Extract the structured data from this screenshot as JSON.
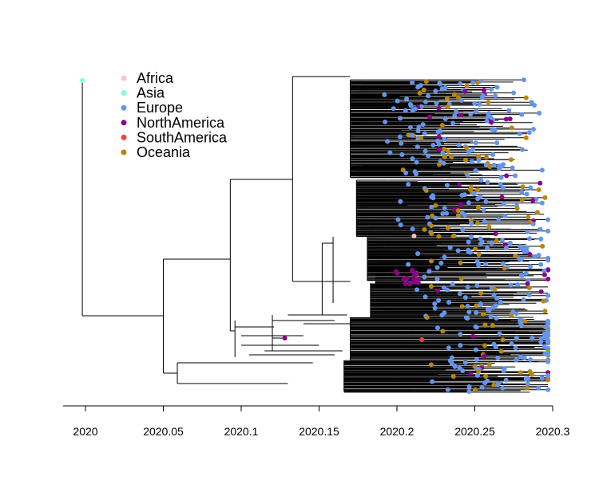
{
  "chart_data": {
    "type": "scatter",
    "description_kind": "time-scaled phylogenetic tree",
    "x_axis": {
      "range": [
        2019.98,
        2020.3
      ],
      "ticks": [
        2020,
        2020.05,
        2020.1,
        2020.15,
        2020.2,
        2020.25,
        2020.3
      ],
      "tick_labels": [
        "2020",
        "2020.05",
        "2020.1",
        "2020.15",
        "2020.2",
        "2020.25",
        "2020.3"
      ]
    },
    "legend": {
      "placement": "top-left",
      "entries": [
        {
          "label": "Africa",
          "color": "#FFC0CB"
        },
        {
          "label": "Asia",
          "color": "#7FFFD4"
        },
        {
          "label": "Europe",
          "color": "#6495ED"
        },
        {
          "label": "NorthAmerica",
          "color": "#8B008B"
        },
        {
          "label": "SouthAmerica",
          "color": "#FF4040"
        },
        {
          "label": "Oceania",
          "color": "#B8860B"
        }
      ]
    },
    "tree": {
      "root_date": 2019.998,
      "outgroup_tip": {
        "region": "Asia",
        "date": 2019.998
      },
      "main_clade_date": 2020.003,
      "subclades": [
        {
          "date": 2020.05,
          "children": [
            2020.093,
            2020.009
          ]
        },
        {
          "date": 2020.093,
          "children": [
            2020.133,
            2020.089
          ]
        },
        {
          "date": 2020.133,
          "children": [
            2020.17,
            2020.152
          ]
        },
        {
          "date": 2020.009,
          "children": [
            2020.059,
            2020.066
          ]
        }
      ],
      "tip_date_range": [
        2020.17,
        2020.297
      ],
      "tip_region_counts": {
        "Africa": 1,
        "Asia": 1,
        "Europe": 330,
        "NorthAmerica": 45,
        "SouthAmerica": 1,
        "Oceania": 115
      }
    }
  }
}
